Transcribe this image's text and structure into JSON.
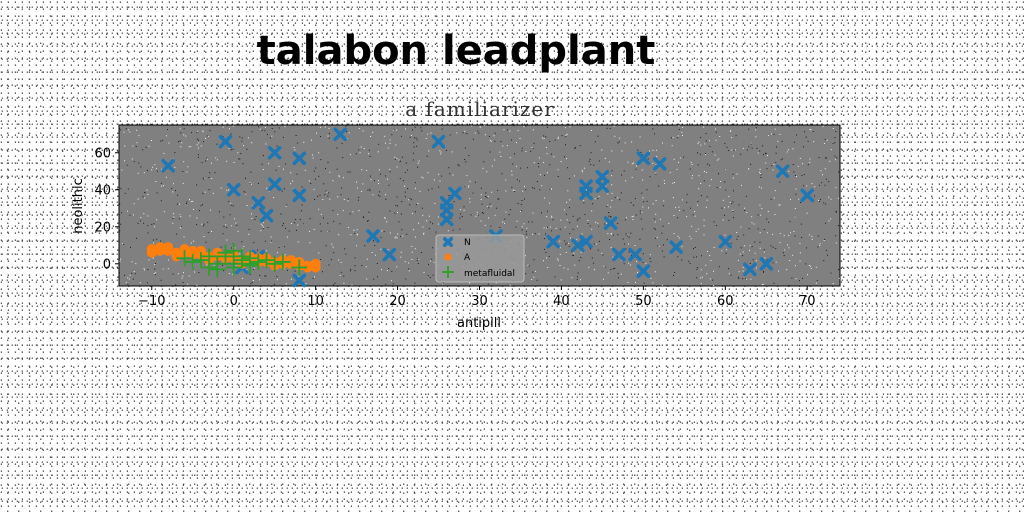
{
  "chart_data": {
    "type": "scatter",
    "title": "talabon leadplant",
    "subtitle": "a familiarizer",
    "xlabel": "antipill",
    "ylabel": "neolithic",
    "xlim": [
      -14,
      74
    ],
    "ylim": [
      -12,
      75
    ],
    "xticks": [
      -10,
      0,
      10,
      20,
      30,
      40,
      50,
      60,
      70
    ],
    "yticks": [
      0,
      20,
      40,
      60
    ],
    "grid": false,
    "legend_position": "lower-center",
    "plot_background": "#808080",
    "series": [
      {
        "name": "N",
        "marker": "X",
        "color": "#1f77b4",
        "points": [
          [
            -8,
            53
          ],
          [
            -1,
            66
          ],
          [
            0,
            40
          ],
          [
            3,
            33
          ],
          [
            4,
            26
          ],
          [
            5,
            60
          ],
          [
            5,
            43
          ],
          [
            8,
            57
          ],
          [
            8,
            37
          ],
          [
            13,
            70
          ],
          [
            17,
            15
          ],
          [
            19,
            5
          ],
          [
            25,
            66
          ],
          [
            26,
            33
          ],
          [
            26,
            29
          ],
          [
            26,
            24
          ],
          [
            27,
            38
          ],
          [
            32,
            15
          ],
          [
            39,
            12
          ],
          [
            42,
            10
          ],
          [
            43,
            12
          ],
          [
            43,
            42
          ],
          [
            43,
            38
          ],
          [
            45,
            47
          ],
          [
            45,
            42
          ],
          [
            46,
            22
          ],
          [
            47,
            5
          ],
          [
            49,
            5
          ],
          [
            50,
            57
          ],
          [
            50,
            -4
          ],
          [
            52,
            54
          ],
          [
            54,
            9
          ],
          [
            60,
            12
          ],
          [
            63,
            -3
          ],
          [
            65,
            0
          ],
          [
            67,
            50
          ],
          [
            70,
            37
          ],
          [
            3,
            4
          ],
          [
            8,
            -9
          ],
          [
            1,
            -2
          ]
        ]
      },
      {
        "name": "A",
        "marker": "o",
        "color": "#ff7f0e",
        "points": [
          [
            -10,
            8
          ],
          [
            -9,
            7
          ],
          [
            -8,
            7
          ],
          [
            -7,
            6
          ],
          [
            -6,
            6
          ],
          [
            -5,
            5
          ],
          [
            -4,
            5
          ],
          [
            -3,
            4
          ],
          [
            -2,
            4
          ],
          [
            -1,
            3
          ],
          [
            0,
            3
          ],
          [
            1,
            2
          ],
          [
            2,
            2
          ],
          [
            3,
            1
          ],
          [
            4,
            1
          ],
          [
            5,
            1
          ],
          [
            6,
            0
          ],
          [
            7,
            0
          ],
          [
            8,
            -1
          ],
          [
            9,
            -1
          ],
          [
            10,
            -2
          ],
          [
            -10,
            6
          ],
          [
            -9,
            9
          ],
          [
            -8,
            9
          ],
          [
            -6,
            8
          ],
          [
            -4,
            7
          ],
          [
            -2,
            6
          ],
          [
            0,
            5
          ],
          [
            2,
            4
          ],
          [
            4,
            3
          ],
          [
            6,
            2
          ],
          [
            8,
            1
          ],
          [
            10,
            0
          ],
          [
            -7,
            4
          ],
          [
            -3,
            2
          ],
          [
            1,
            0
          ],
          [
            5,
            -1
          ],
          [
            9,
            -2
          ],
          [
            -5,
            7
          ],
          [
            3,
            3
          ],
          [
            7,
            2
          ]
        ]
      },
      {
        "name": "metafluidal",
        "marker": "+",
        "color": "#2ca02c",
        "points": [
          [
            -6,
            3
          ],
          [
            -5,
            1
          ],
          [
            -4,
            2
          ],
          [
            -3,
            -2
          ],
          [
            -2,
            0
          ],
          [
            -1,
            4
          ],
          [
            -1,
            6
          ],
          [
            0,
            0
          ],
          [
            0,
            -2
          ],
          [
            1,
            2
          ],
          [
            1,
            4
          ],
          [
            2,
            0
          ],
          [
            2,
            -1
          ],
          [
            3,
            1
          ],
          [
            4,
            2
          ],
          [
            5,
            0
          ],
          [
            6,
            1
          ],
          [
            8,
            -2
          ],
          [
            -3,
            4
          ],
          [
            0,
            7
          ],
          [
            2,
            3
          ],
          [
            -2,
            -3
          ]
        ]
      }
    ]
  }
}
